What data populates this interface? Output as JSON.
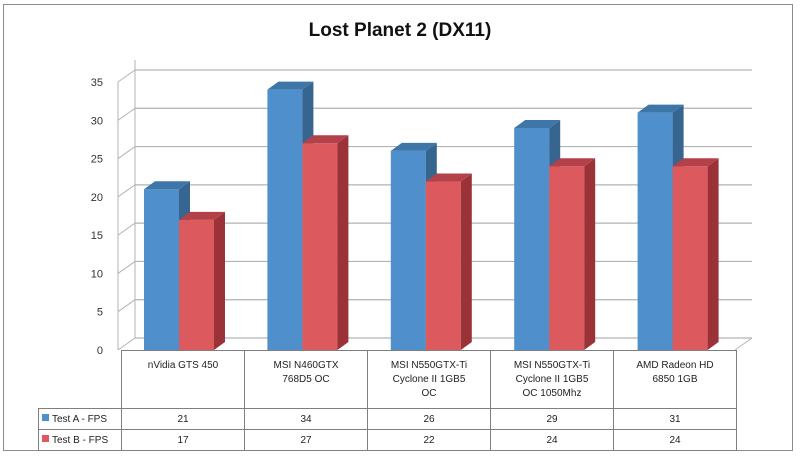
{
  "chart_data": {
    "type": "bar",
    "style": "3d-clustered-column-with-data-table",
    "title": "Lost Planet 2 (DX11)",
    "xlabel": "",
    "ylabel": "",
    "ylim": [
      0,
      35
    ],
    "yticks": [
      "0",
      "5",
      "10",
      "15",
      "20",
      "25",
      "30",
      "35"
    ],
    "grid": true,
    "legend_position": "data-table",
    "categories": [
      "nVidia GTS 450",
      "MSI N460GTX 768D5 OC",
      "MSI N550GTX-Ti Cyclone II 1GB5 OC",
      "MSI N550GTX-Ti Cyclone II 1GB5 OC 1050Mhz",
      "AMD Radeon HD 6850 1GB"
    ],
    "category_lines": [
      [
        "nVidia GTS 450"
      ],
      [
        "MSI N460GTX",
        "768D5 OC"
      ],
      [
        "MSI N550GTX-Ti",
        "Cyclone II 1GB5",
        "OC"
      ],
      [
        "MSI N550GTX-Ti",
        "Cyclone II 1GB5",
        "OC 1050Mhz"
      ],
      [
        "AMD Radeon HD",
        "6850 1GB"
      ]
    ],
    "series": [
      {
        "name": "Test A - FPS",
        "color": "#4f8fcb",
        "values": [
          21,
          34,
          26,
          29,
          31
        ]
      },
      {
        "name": "Test B - FPS",
        "color": "#dc5a5e",
        "values": [
          17,
          27,
          22,
          24,
          24
        ]
      }
    ]
  },
  "colors": {
    "series_a_front": "#4f8fcb",
    "series_a_side": "#36658f",
    "series_a_top": "#3f76a8",
    "series_b_front": "#dc5a5e",
    "series_b_side": "#9b3238",
    "series_b_top": "#b3414a",
    "grid": "#b3b3b3"
  }
}
